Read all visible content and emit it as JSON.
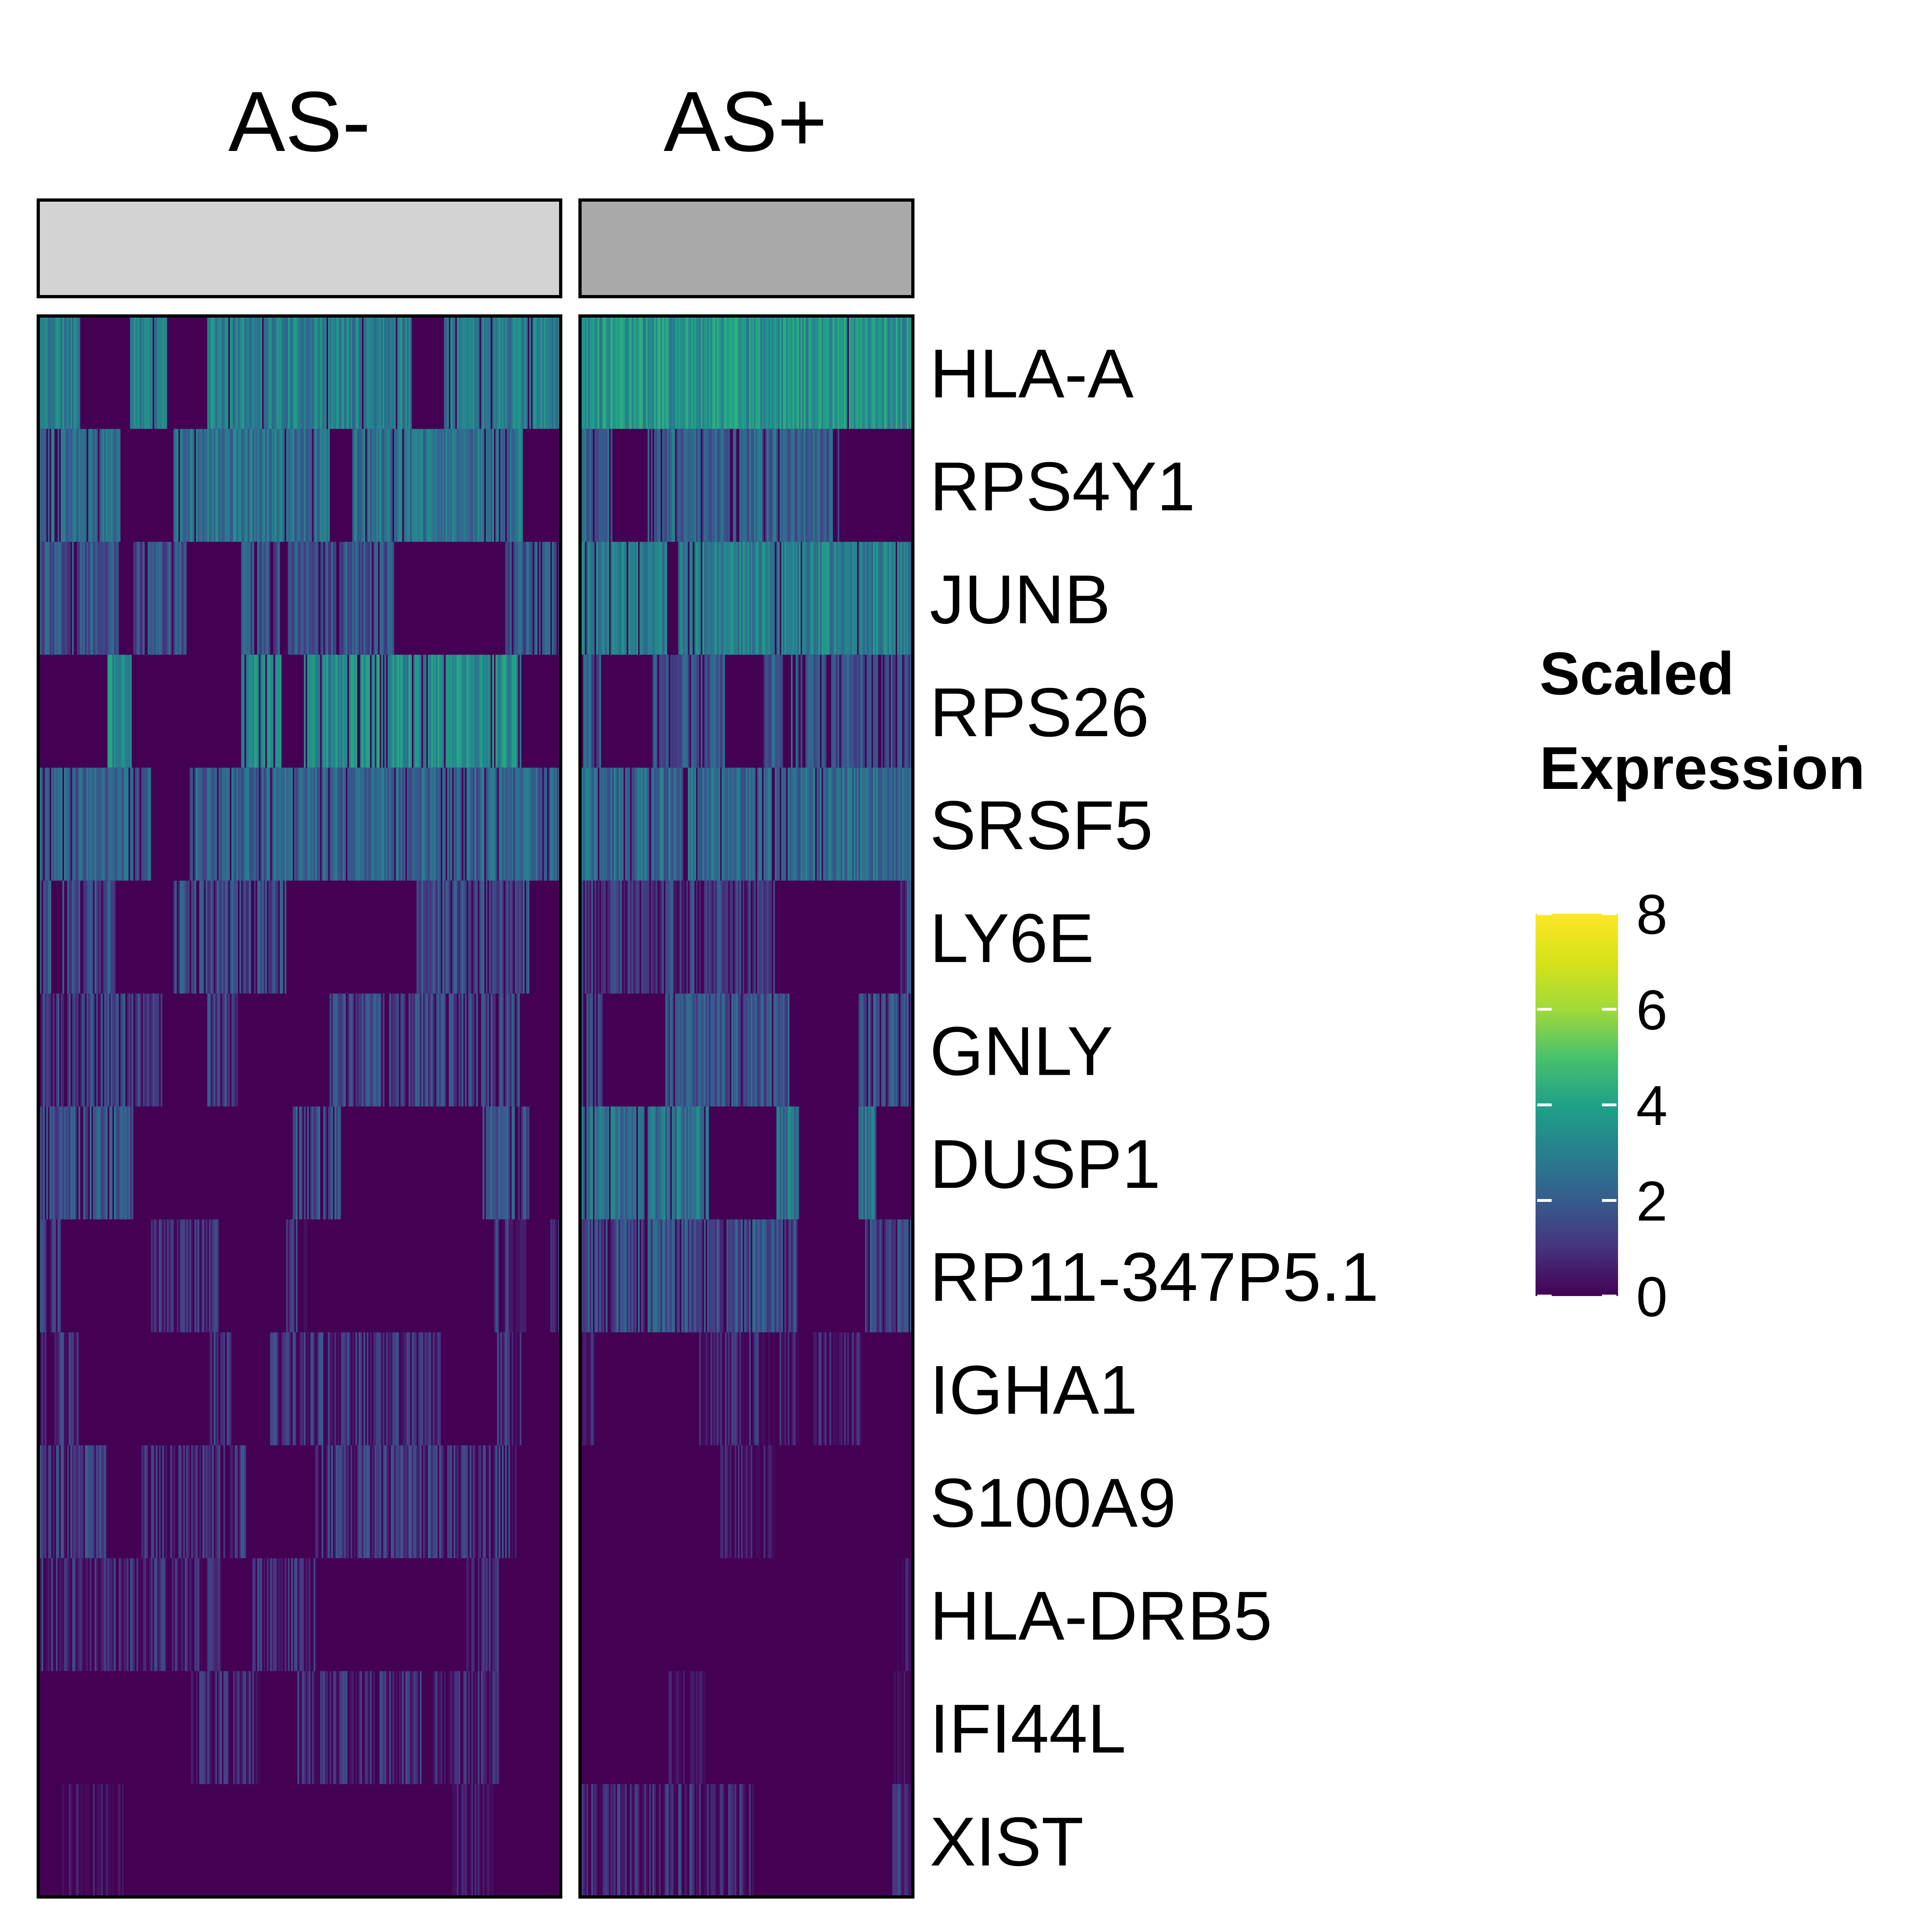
{
  "chart_data": {
    "type": "heatmap",
    "title": "",
    "groups": [
      {
        "name": "AS-",
        "color": "#d3d3d3",
        "cells": 1400
      },
      {
        "name": "AS+",
        "color": "#a9a9a9",
        "cells": 880
      }
    ],
    "genes": [
      "HLA-A",
      "RPS4Y1",
      "JUNB",
      "RPS26",
      "SRSF5",
      "LY6E",
      "GNLY",
      "DUSP1",
      "RP11-347P5.1",
      "IGHA1",
      "S100A9",
      "HLA-DRB5",
      "IFI44L",
      "XIST"
    ],
    "mean_scaled_expression": {
      "AS-": [
        3.0,
        2.6,
        1.8,
        3.4,
        2.2,
        1.6,
        1.4,
        1.8,
        1.0,
        1.0,
        1.2,
        0.9,
        0.8,
        0.1
      ],
      "AS+": [
        3.6,
        2.2,
        3.0,
        1.8,
        2.4,
        1.2,
        1.8,
        2.6,
        1.6,
        0.5,
        0.4,
        0.2,
        0.2,
        0.9
      ]
    },
    "zero_fraction": {
      "AS-": [
        0.12,
        0.25,
        0.42,
        0.35,
        0.3,
        0.48,
        0.55,
        0.45,
        0.62,
        0.68,
        0.6,
        0.7,
        0.75,
        0.98
      ],
      "AS+": [
        0.05,
        0.3,
        0.2,
        0.45,
        0.25,
        0.5,
        0.4,
        0.25,
        0.4,
        0.85,
        0.88,
        0.95,
        0.95,
        0.75
      ]
    },
    "legend": {
      "title_line1": "Scaled",
      "title_line2": "Expression",
      "range": [
        0,
        8
      ],
      "ticks": [
        "0",
        "2",
        "4",
        "6",
        "8"
      ],
      "tick_values": [
        0,
        2,
        4,
        6,
        8
      ],
      "colormap": "viridis",
      "placement": "right"
    }
  }
}
